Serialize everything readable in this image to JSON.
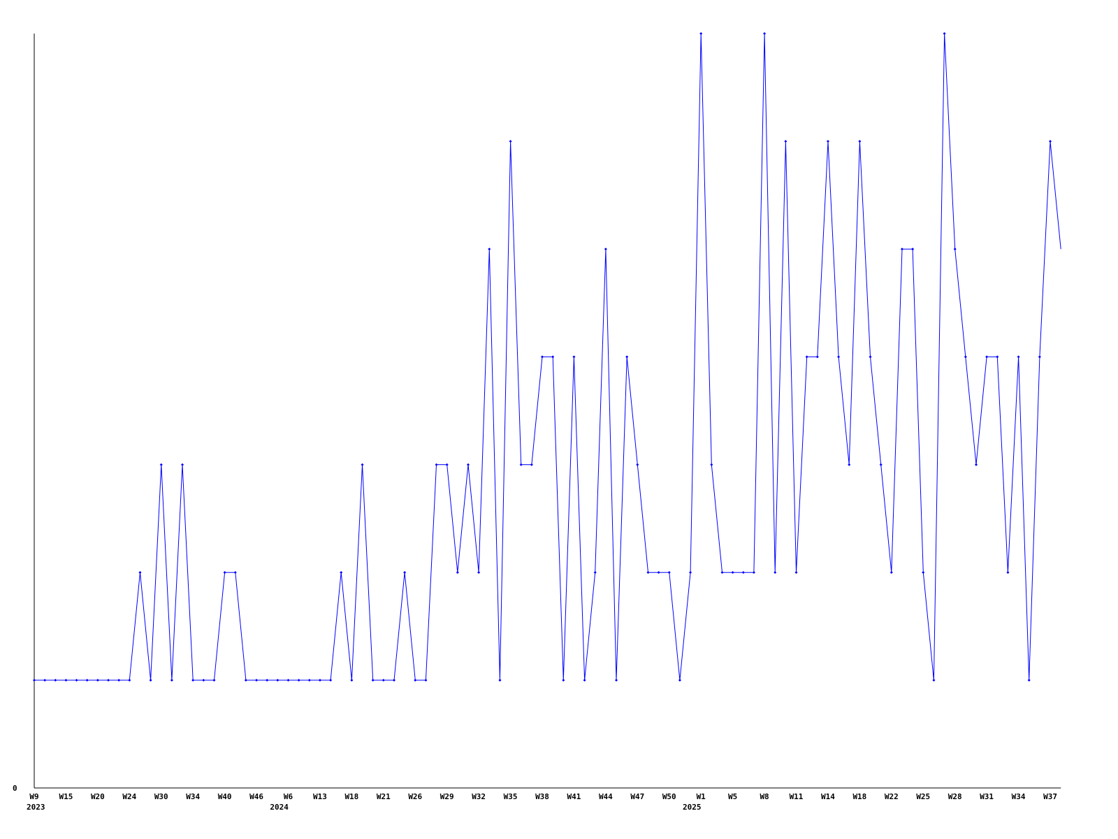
{
  "chart_data": {
    "type": "line",
    "title": "",
    "xlabel": "",
    "ylabel": "",
    "y_tick_labels": [
      "0"
    ],
    "ylim": [
      0,
      7
    ],
    "grid": false,
    "legend": "none",
    "line_color": "#0000ff",
    "axis_color": "#000000",
    "values": [
      1,
      1,
      1,
      1,
      1,
      1,
      1,
      1,
      1,
      1,
      2,
      1,
      3,
      1,
      3,
      1,
      1,
      1,
      2,
      2,
      1,
      1,
      1,
      1,
      1,
      1,
      1,
      1,
      1,
      2,
      1,
      3,
      1,
      1,
      1,
      2,
      1,
      1,
      3,
      3,
      2,
      3,
      2,
      5,
      1,
      6,
      3,
      3,
      4,
      4,
      1,
      4,
      1,
      2,
      5,
      1,
      4,
      3,
      2,
      2,
      2,
      1,
      2,
      7,
      3,
      2,
      2,
      2,
      2,
      7,
      2,
      6,
      2,
      4,
      4,
      6,
      4,
      3,
      6,
      4,
      3,
      2,
      5,
      5,
      2,
      1,
      7,
      5,
      4,
      3,
      4,
      4,
      2,
      4,
      1,
      4,
      6,
      5
    ],
    "x_tick_labels": [
      {
        "index": 0,
        "label": "W9"
      },
      {
        "index": 3,
        "label": "W15"
      },
      {
        "index": 6,
        "label": "W20"
      },
      {
        "index": 9,
        "label": "W24"
      },
      {
        "index": 12,
        "label": "W30"
      },
      {
        "index": 15,
        "label": "W34"
      },
      {
        "index": 18,
        "label": "W40"
      },
      {
        "index": 21,
        "label": "W46"
      },
      {
        "index": 24,
        "label": "W6"
      },
      {
        "index": 27,
        "label": "W13"
      },
      {
        "index": 30,
        "label": "W18"
      },
      {
        "index": 33,
        "label": "W21"
      },
      {
        "index": 36,
        "label": "W26"
      },
      {
        "index": 39,
        "label": "W29"
      },
      {
        "index": 42,
        "label": "W32"
      },
      {
        "index": 45,
        "label": "W35"
      },
      {
        "index": 48,
        "label": "W38"
      },
      {
        "index": 51,
        "label": "W41"
      },
      {
        "index": 54,
        "label": "W44"
      },
      {
        "index": 57,
        "label": "W47"
      },
      {
        "index": 60,
        "label": "W50"
      },
      {
        "index": 63,
        "label": "W1"
      },
      {
        "index": 66,
        "label": "W5"
      },
      {
        "index": 69,
        "label": "W8"
      },
      {
        "index": 72,
        "label": "W11"
      },
      {
        "index": 75,
        "label": "W14"
      },
      {
        "index": 78,
        "label": "W18"
      },
      {
        "index": 81,
        "label": "W22"
      },
      {
        "index": 84,
        "label": "W25"
      },
      {
        "index": 87,
        "label": "W28"
      },
      {
        "index": 90,
        "label": "W31"
      },
      {
        "index": 93,
        "label": "W34"
      },
      {
        "index": 96,
        "label": "W37"
      }
    ],
    "year_labels": [
      {
        "index": 0,
        "label": "2023"
      },
      {
        "index": 23,
        "label": "2024"
      },
      {
        "index": 62,
        "label": "2025"
      }
    ]
  }
}
